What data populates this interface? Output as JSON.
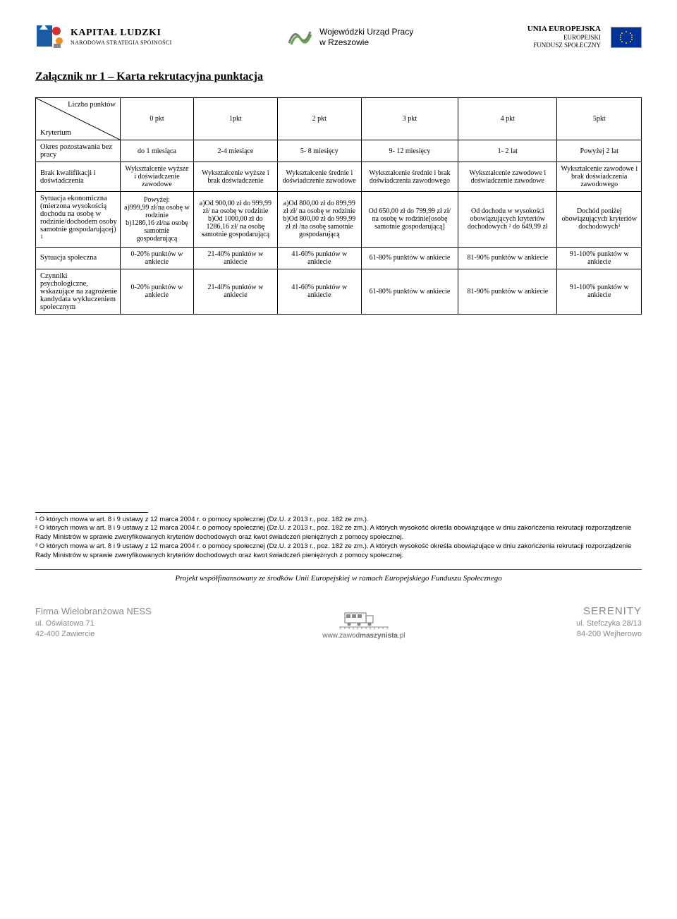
{
  "header": {
    "logo1": {
      "main": "KAPITAŁ LUDZKI",
      "sub": "NARODOWA STRATEGIA SPÓJNOŚCI"
    },
    "logo2": {
      "line1": "Wojewódzki Urząd Pracy",
      "line2": "w Rzeszowie"
    },
    "logo3": {
      "line1": "UNIA EUROPEJSKA",
      "line2": "EUROPEJSKI",
      "line3": "FUNDUSZ SPOŁECZNY"
    }
  },
  "title": "Załącznik nr 1 – Karta rekrutacyjna punktacja",
  "table": {
    "diag_top": "Liczba punktów",
    "diag_bottom": "Kryterium",
    "col_headers": [
      "0 pkt",
      "1pkt",
      "2 pkt",
      "3 pkt",
      "4 pkt",
      "5pkt"
    ],
    "rows": [
      {
        "label": "Okres pozostawania bez pracy",
        "cells": [
          "do 1 miesiąca",
          "2-4 miesiące",
          "5- 8 miesięcy",
          "9- 12 miesięcy",
          "1- 2 lat",
          "Powyżej 2 lat"
        ]
      },
      {
        "label": "Brak kwalifikacji i doświadczenia",
        "cells": [
          "Wykształcenie wyższe i doświadczenie zawodowe",
          "Wykształcenie wyższe i brak doświadczenie",
          "Wykształcenie średnie i doświadczenie zawodowe",
          "Wykształcenie średnie i brak doświadczenia zawodowego",
          "Wykształcenie zawodowe i doświadczenie zawodowe",
          "Wykształcenie zawodowe i brak doświadczenia zawodowego"
        ]
      },
      {
        "label_html": "Sytuacja ekonomiczna (mierzona wysokością dochodu na osobę w rodzinie/dochodem osoby samotnie gospodarującej) <sup>1</sup>",
        "cells": [
          "Powyżej:\na)999,99 zł/na osobę w rodzinie\nb)1286,16 zł/na osobę samotnie gospodarującą",
          "a)Od 900,00 zł do 999,99 zł/ na osobę w rodzinie\nb)Od 1000,00 zł do 1286,16 zł/ na osobę samotnie gospodarującą",
          "a)Od 800,00 zł do 899,99 zł zł/ na osobę w rodzinie\nb)Od 800,00 zł do 999,99 zł zł /na osobę samotnie gospodarującą",
          "Od 650,00 zł do 799,99 zł zł/ na osobę w rodzinie[osobę samotnie gospodarującą]",
          "Od dochodu w wysokości obowiązujących kryteriów dochodowych ² do 649,99 zł",
          "Dochód poniżej obowiązujących kryteriów dochodowych³"
        ]
      },
      {
        "label": "Sytuacja społeczna",
        "cells": [
          "0-20% punktów w ankiecie",
          "21-40% punktów w ankiecie",
          "41-60% punktów w ankiecie",
          "61-80% punktów w ankiecie",
          "81-90% punktów w ankiecie",
          "91-100% punktów w ankiecie"
        ]
      },
      {
        "label": "Czynniki psychologiczne, wskazujące na zagrożenie kandydata wykluczeniem społecznym",
        "cells": [
          "0-20% punktów w ankiecie",
          "21-40% punktów w ankiecie",
          "41-60% punktów w ankiecie",
          "61-80% punktów w ankiecie",
          "81-90% punktów w ankiecie",
          "91-100% punktów w ankiecie"
        ]
      }
    ]
  },
  "footnotes": [
    "¹ O których mowa w art. 8 i 9 ustawy z 12 marca 2004 r. o pomocy społecznej (Dz.U. z 2013 r., poz. 182 ze zm.).",
    "² O których mowa w art. 8 i 9 ustawy z 12 marca 2004 r. o pomocy społecznej (Dz.U. z 2013 r., poz. 182 ze zm.). A których wysokość określa obowiązujące w dniu zakończenia rekrutacji rozporządzenie Rady Ministrów w sprawie zweryfikowanych kryteriów dochodowych oraz kwot świadczeń pieniężnych z pomocy społecznej.",
    "³ O których mowa w art. 8 i 9 ustawy z 12 marca 2004 r. o pomocy społecznej (Dz.U. z 2013 r., poz. 182 ze zm.). A których wysokość określa obowiązujące w dniu zakończenia rekrutacji rozporządzenie Rady Ministrów w sprawie zweryfikowanych kryteriów dochodowych oraz kwot świadczeń pieniężnych z pomocy społecznej."
  ],
  "cofinance": "Projekt współfinansowany ze środków Unii Europejskiej w ramach Europejskiego Funduszu Społecznego",
  "footer": {
    "left": {
      "name": "Firma Wielobranżowa NESS",
      "addr1": "ul. Oświatowa 71",
      "addr2": "42-400 Zawiercie"
    },
    "center": {
      "url_prefix": "www.zawod",
      "url_bold": "maszynista",
      "url_suffix": ".pl"
    },
    "right": {
      "name": "SERENITY",
      "addr1": "ul. Stefczyka 28/13",
      "addr2": "84-200 Wejherowo"
    }
  },
  "colors": {
    "eu_blue": "#003399",
    "eu_gold": "#ffcc00",
    "kl_blue": "#1a5ba6",
    "kl_orange": "#f08c1a",
    "kl_red": "#d42e32",
    "wup_gray": "#7a7a7a",
    "wup_green": "#61a641"
  }
}
